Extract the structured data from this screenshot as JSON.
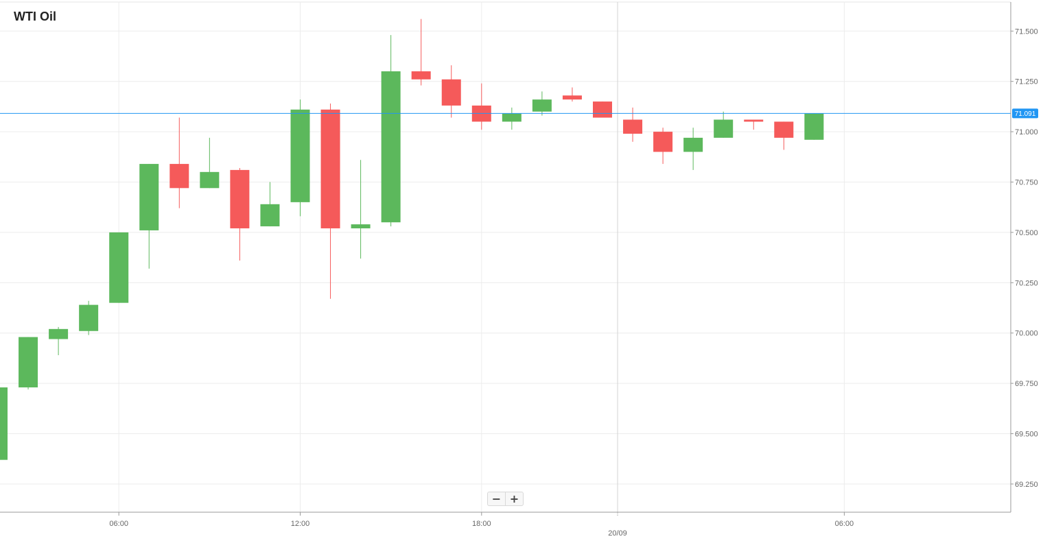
{
  "chart_data": {
    "type": "candlestick",
    "title": "WTI Oil",
    "xlabel": "",
    "ylabel": "",
    "interval": "1h",
    "ylim": [
      69.1,
      71.6
    ],
    "y_ticks": [
      "69.250",
      "69.500",
      "69.750",
      "70.000",
      "70.250",
      "70.500",
      "70.750",
      "71.000",
      "71.250",
      "71.500"
    ],
    "x_ticks": [
      {
        "label": "06:00",
        "at": 4
      },
      {
        "label": "12:00",
        "at": 10
      },
      {
        "label": "18:00",
        "at": 16
      },
      {
        "label": "06:00",
        "at": 28
      }
    ],
    "date_marker": {
      "label": "20/09",
      "at": 20.5
    },
    "current_price": {
      "value": 71.091,
      "label": "71.091",
      "color": "#2196f3"
    },
    "colors": {
      "up": "#5cb85c",
      "down": "#f55a5a",
      "grid": "#ececec",
      "axis": "#999999"
    },
    "candles": [
      {
        "o": 69.37,
        "h": 69.73,
        "l": 69.37,
        "c": 69.73
      },
      {
        "o": 69.73,
        "h": 69.98,
        "l": 69.72,
        "c": 69.98
      },
      {
        "o": 69.97,
        "h": 70.03,
        "l": 69.89,
        "c": 70.02
      },
      {
        "o": 70.01,
        "h": 70.16,
        "l": 69.99,
        "c": 70.14
      },
      {
        "o": 70.15,
        "h": 70.5,
        "l": 70.15,
        "c": 70.5
      },
      {
        "o": 70.51,
        "h": 70.84,
        "l": 70.32,
        "c": 70.84
      },
      {
        "o": 70.84,
        "h": 71.07,
        "l": 70.62,
        "c": 70.72
      },
      {
        "o": 70.72,
        "h": 70.97,
        "l": 70.72,
        "c": 70.8
      },
      {
        "o": 70.81,
        "h": 70.82,
        "l": 70.36,
        "c": 70.52
      },
      {
        "o": 70.53,
        "h": 70.75,
        "l": 70.53,
        "c": 70.64
      },
      {
        "o": 70.65,
        "h": 71.16,
        "l": 70.58,
        "c": 71.11
      },
      {
        "o": 71.11,
        "h": 71.14,
        "l": 70.17,
        "c": 70.52
      },
      {
        "o": 70.52,
        "h": 70.86,
        "l": 70.37,
        "c": 70.54
      },
      {
        "o": 70.55,
        "h": 71.48,
        "l": 70.53,
        "c": 71.3
      },
      {
        "o": 71.3,
        "h": 71.56,
        "l": 71.23,
        "c": 71.26
      },
      {
        "o": 71.26,
        "h": 71.33,
        "l": 71.07,
        "c": 71.13
      },
      {
        "o": 71.13,
        "h": 71.24,
        "l": 71.01,
        "c": 71.05
      },
      {
        "o": 71.05,
        "h": 71.12,
        "l": 71.01,
        "c": 71.09
      },
      {
        "o": 71.1,
        "h": 71.2,
        "l": 71.08,
        "c": 71.16
      },
      {
        "o": 71.18,
        "h": 71.22,
        "l": 71.15,
        "c": 71.16
      },
      {
        "o": 71.15,
        "h": 71.15,
        "l": 71.07,
        "c": 71.07
      },
      {
        "o": 71.06,
        "h": 71.12,
        "l": 70.95,
        "c": 70.99
      },
      {
        "o": 71.0,
        "h": 71.02,
        "l": 70.84,
        "c": 70.9
      },
      {
        "o": 70.9,
        "h": 71.02,
        "l": 70.81,
        "c": 70.97
      },
      {
        "o": 70.97,
        "h": 71.1,
        "l": 70.97,
        "c": 71.06
      },
      {
        "o": 71.06,
        "h": 71.06,
        "l": 71.01,
        "c": 71.05
      },
      {
        "o": 71.05,
        "h": 71.05,
        "l": 70.91,
        "c": 70.97
      },
      {
        "o": 70.96,
        "h": 71.09,
        "l": 70.96,
        "c": 71.09
      }
    ]
  },
  "zoom": {
    "out_label": "−",
    "in_label": "+"
  }
}
